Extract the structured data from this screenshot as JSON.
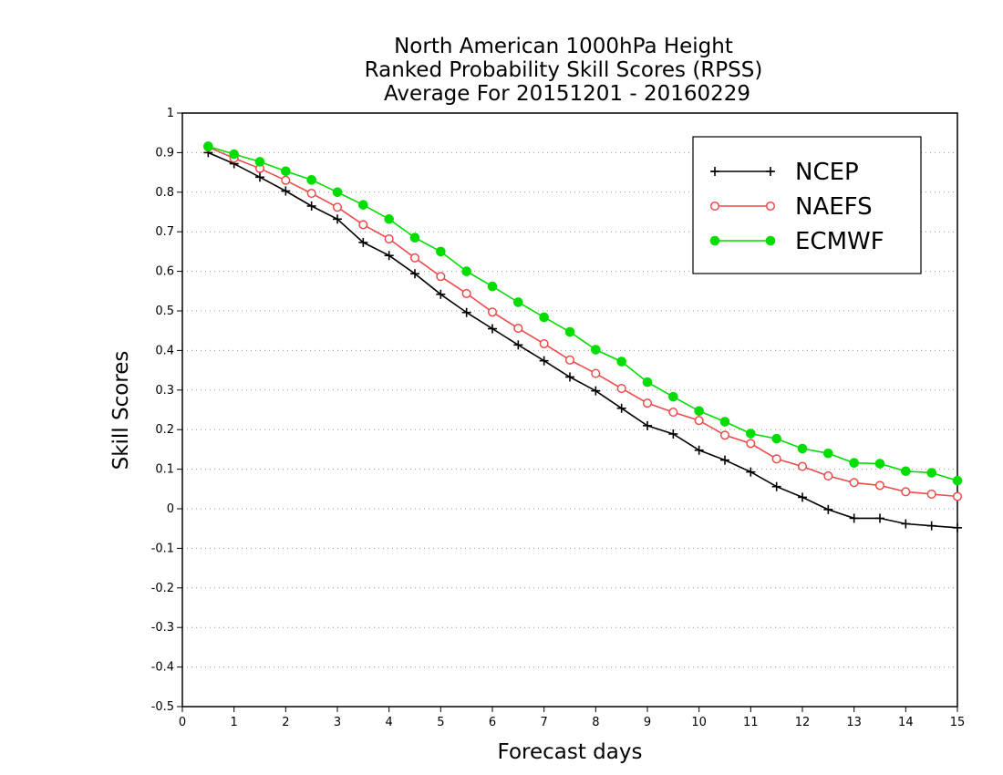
{
  "chart_data": {
    "type": "line",
    "title": [
      "North American 1000hPa Height",
      "Ranked Probability Skill Scores (RPSS)",
      "Average For 20151201 - 20160229"
    ],
    "xlabel": "Forecast days",
    "ylabel": "Skill Scores",
    "xlim": [
      0,
      15
    ],
    "ylim": [
      -0.5,
      1
    ],
    "x_ticks": [
      "0",
      "1",
      "2",
      "3",
      "4",
      "5",
      "6",
      "7",
      "8",
      "9",
      "10",
      "11",
      "12",
      "13",
      "14",
      "15"
    ],
    "y_ticks": [
      "-0.5",
      "-0.4",
      "-0.3",
      "-0.2",
      "-0.1",
      "0",
      "0.1",
      "0.2",
      "0.3",
      "0.4",
      "0.5",
      "0.6",
      "0.7",
      "0.8",
      "0.9",
      "1"
    ],
    "grid": "horizontal dotted",
    "legend_position": "top-right",
    "x": [
      0.5,
      1,
      1.5,
      2,
      2.5,
      3,
      3.5,
      4,
      4.5,
      5,
      5.5,
      6,
      6.5,
      7,
      7.5,
      8,
      8.5,
      9,
      9.5,
      10,
      10.5,
      11,
      11.5,
      12,
      12.5,
      13,
      13.5,
      14,
      14.5,
      15
    ],
    "series": [
      {
        "name": "NCEP",
        "color": "#000000",
        "marker": "plus",
        "values": [
          0.9,
          0.872,
          0.838,
          0.803,
          0.765,
          0.732,
          0.673,
          0.64,
          0.594,
          0.542,
          0.496,
          0.455,
          0.414,
          0.374,
          0.333,
          0.298,
          0.254,
          0.21,
          0.189,
          0.148,
          0.123,
          0.093,
          0.056,
          0.029,
          -0.002,
          -0.024,
          -0.024,
          -0.038,
          -0.043,
          -0.048
        ]
      },
      {
        "name": "NAEFS",
        "color": "#ee4b4b",
        "marker": "open-circle",
        "values": [
          0.914,
          0.886,
          0.86,
          0.83,
          0.797,
          0.762,
          0.718,
          0.682,
          0.634,
          0.587,
          0.544,
          0.497,
          0.456,
          0.417,
          0.376,
          0.342,
          0.304,
          0.267,
          0.244,
          0.223,
          0.186,
          0.165,
          0.126,
          0.107,
          0.083,
          0.066,
          0.059,
          0.043,
          0.037,
          0.031
        ]
      },
      {
        "name": "ECMWF",
        "color": "#00dd00",
        "marker": "filled-circle",
        "values": [
          0.916,
          0.896,
          0.877,
          0.853,
          0.831,
          0.8,
          0.768,
          0.732,
          0.685,
          0.65,
          0.6,
          0.562,
          0.522,
          0.484,
          0.447,
          0.402,
          0.372,
          0.32,
          0.283,
          0.247,
          0.22,
          0.19,
          0.177,
          0.152,
          0.14,
          0.116,
          0.114,
          0.095,
          0.091,
          0.071
        ]
      }
    ]
  }
}
